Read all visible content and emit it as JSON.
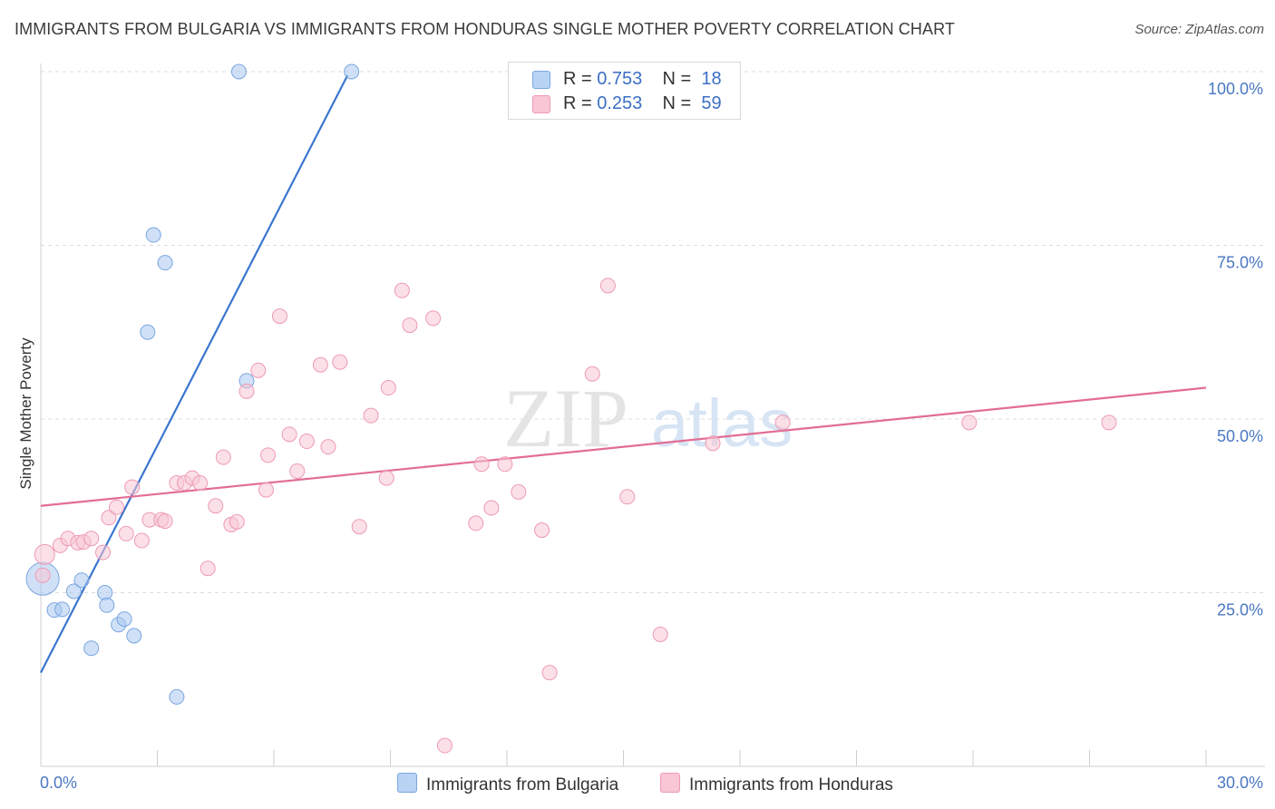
{
  "chart_data": {
    "type": "scatter",
    "title": "IMMIGRANTS FROM BULGARIA VS IMMIGRANTS FROM HONDURAS SINGLE MOTHER POVERTY CORRELATION CHART",
    "source": "Source: ZipAtlas.com",
    "ylabel": "Single Mother Poverty",
    "xlabel": "",
    "xlim": [
      0,
      30
    ],
    "ylim": [
      0,
      105
    ],
    "x_tick_labels": [
      "0.0%",
      "30.0%"
    ],
    "y_ticks": [
      {
        "value": 25,
        "label": "25.0%"
      },
      {
        "value": 50,
        "label": "50.0%"
      },
      {
        "value": 75,
        "label": "75.0%"
      },
      {
        "value": 100,
        "label": "100.0%"
      }
    ],
    "watermark": {
      "zip": "ZIP",
      "atlas": "atlas"
    },
    "legend_stats": [
      {
        "r_label": "R = ",
        "r": "0.753",
        "n_label": "N = ",
        "n": "18",
        "color": "#b8d3f4"
      },
      {
        "r_label": "R = ",
        "r": "0.253",
        "n_label": "N = ",
        "n": "59",
        "color": "#f8c6d4"
      }
    ],
    "series": [
      {
        "name": "Immigrants from Bulgaria",
        "color": "#a9c8f0",
        "stroke": "#7aa6e0",
        "line_color": "#3b76cf",
        "trend": [
          [
            0,
            13.5
          ],
          [
            7.9,
            99.5
          ]
        ],
        "points": [
          [
            0.05,
            27.0
          ],
          [
            0.35,
            22.5
          ],
          [
            0.55,
            22.6
          ],
          [
            0.85,
            25.2
          ],
          [
            1.05,
            26.8
          ],
          [
            1.3,
            17.0
          ],
          [
            1.65,
            25.0
          ],
          [
            1.7,
            23.2
          ],
          [
            2.0,
            20.4
          ],
          [
            2.15,
            21.2
          ],
          [
            2.4,
            18.8
          ],
          [
            2.75,
            62.5
          ],
          [
            2.9,
            76.5
          ],
          [
            3.2,
            72.5
          ],
          [
            3.5,
            10.0
          ],
          [
            5.1,
            100.0
          ],
          [
            5.3,
            55.5
          ],
          [
            8.0,
            100.0
          ]
        ],
        "sizes": [
          36,
          16,
          16,
          16,
          16,
          16,
          16,
          16,
          16,
          16,
          16,
          16,
          16,
          16,
          16,
          16,
          16,
          16
        ]
      },
      {
        "name": "Immigrants from Honduras",
        "color": "#f8c6d4",
        "stroke": "#ee9ab5",
        "line_color": "#e26d95",
        "trend": [
          [
            0,
            37.5
          ],
          [
            30,
            54.5
          ]
        ],
        "points": [
          [
            0.1,
            30.5
          ],
          [
            0.5,
            31.8
          ],
          [
            0.7,
            32.8
          ],
          [
            0.95,
            32.2
          ],
          [
            1.1,
            32.3
          ],
          [
            1.3,
            32.8
          ],
          [
            1.6,
            30.8
          ],
          [
            1.75,
            35.8
          ],
          [
            1.95,
            37.3
          ],
          [
            2.2,
            33.5
          ],
          [
            2.35,
            40.2
          ],
          [
            2.6,
            32.5
          ],
          [
            2.8,
            35.5
          ],
          [
            3.1,
            35.5
          ],
          [
            3.2,
            35.3
          ],
          [
            3.5,
            40.8
          ],
          [
            3.7,
            40.8
          ],
          [
            3.9,
            41.5
          ],
          [
            4.1,
            40.8
          ],
          [
            4.3,
            28.5
          ],
          [
            4.5,
            37.5
          ],
          [
            4.7,
            44.5
          ],
          [
            4.9,
            34.8
          ],
          [
            5.05,
            35.2
          ],
          [
            5.3,
            54.0
          ],
          [
            5.6,
            57.0
          ],
          [
            5.8,
            39.8
          ],
          [
            5.85,
            44.8
          ],
          [
            6.15,
            64.8
          ],
          [
            6.4,
            47.8
          ],
          [
            6.6,
            42.5
          ],
          [
            6.85,
            46.8
          ],
          [
            7.2,
            57.8
          ],
          [
            7.4,
            46.0
          ],
          [
            7.7,
            58.2
          ],
          [
            8.2,
            34.5
          ],
          [
            8.5,
            50.5
          ],
          [
            8.9,
            41.5
          ],
          [
            8.95,
            54.5
          ],
          [
            9.3,
            68.5
          ],
          [
            9.5,
            63.5
          ],
          [
            10.1,
            64.5
          ],
          [
            10.4,
            3.0
          ],
          [
            11.2,
            35.0
          ],
          [
            11.35,
            43.5
          ],
          [
            11.6,
            37.2
          ],
          [
            11.95,
            43.5
          ],
          [
            12.3,
            39.5
          ],
          [
            12.9,
            34.0
          ],
          [
            13.1,
            13.5
          ],
          [
            14.2,
            56.5
          ],
          [
            14.6,
            69.2
          ],
          [
            15.1,
            38.8
          ],
          [
            15.95,
            19.0
          ],
          [
            17.3,
            46.5
          ],
          [
            19.1,
            49.5
          ],
          [
            23.9,
            49.5
          ],
          [
            27.5,
            49.5
          ],
          [
            0.05,
            27.5
          ]
        ],
        "sizes": [
          22,
          16,
          16,
          16,
          16,
          16,
          16,
          16,
          16,
          16,
          16,
          16,
          16,
          16,
          16,
          16,
          16,
          16,
          16,
          16,
          16,
          16,
          16,
          16,
          16,
          16,
          16,
          16,
          16,
          16,
          16,
          16,
          16,
          16,
          16,
          16,
          16,
          16,
          16,
          16,
          16,
          16,
          16,
          16,
          16,
          16,
          16,
          16,
          16,
          16,
          16,
          16,
          16,
          16,
          16,
          16,
          16,
          16,
          16
        ]
      }
    ]
  }
}
